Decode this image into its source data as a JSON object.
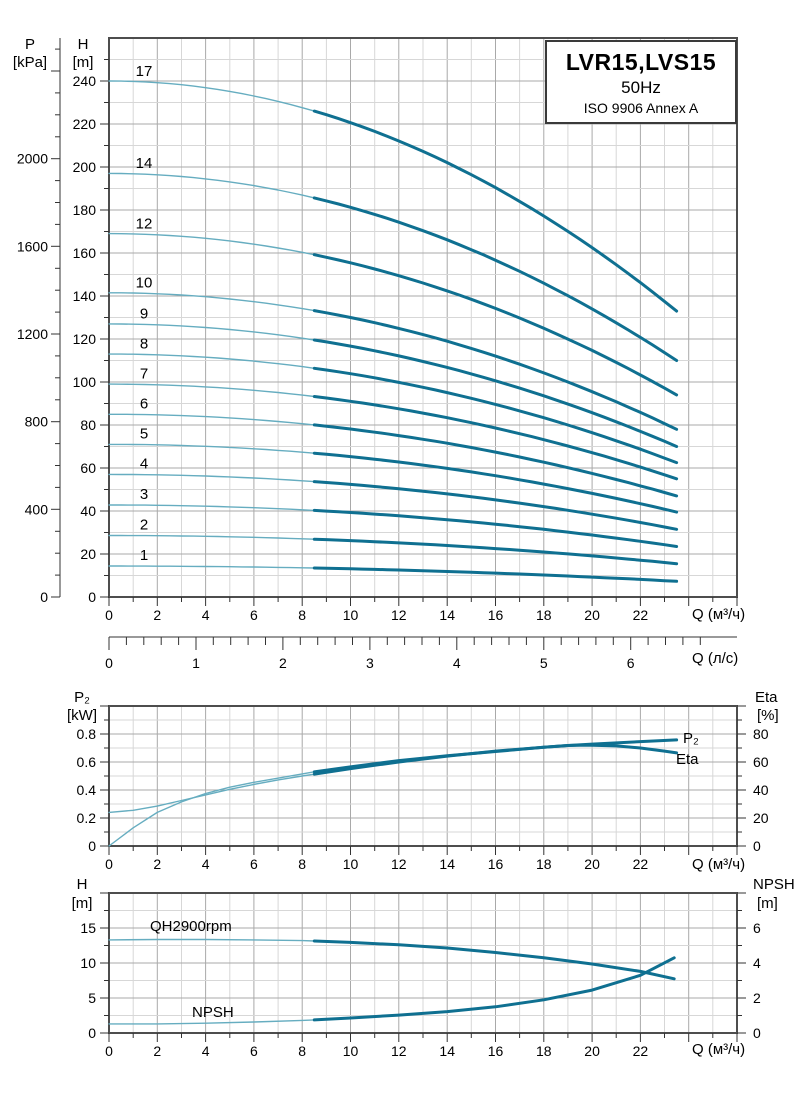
{
  "title_box": {
    "model": "LVR15,LVS15",
    "frequency": "50Hz",
    "standard": "ISO 9906 Annex A"
  },
  "labels": {
    "main": {
      "p": "P",
      "p_unit": "[kPa]",
      "h": "H",
      "h_unit": "[m]",
      "x": "Q (м³/ч)",
      "x2": "Q (л/с)"
    },
    "power": {
      "left": "P₂",
      "left_unit": "[kW]",
      "right": "Eta",
      "right_unit": "[%]",
      "x": "Q (м³/ч)",
      "p2_curve": "P₂",
      "eta_curve": "Eta"
    },
    "npsh": {
      "left": "H",
      "left_unit": "[m]",
      "right": "NPSH",
      "right_unit": "[m]",
      "x": "Q (м³/ч)",
      "qh_curve": "QH2900rpm",
      "npsh_curve": "NPSH"
    }
  },
  "colors": {
    "curve_thick": "#0f7091",
    "curve_thin": "#66adc0",
    "grid_minor": "#d7d7d7",
    "grid_major": "#a9a9a9",
    "border": "#4d4d4d",
    "tick": "#333333",
    "text": "#000000"
  },
  "chart_data": [
    {
      "id": "qh_main",
      "type": "line",
      "title": "LVR15,LVS15 50Hz ISO 9906 Annex A",
      "x_label": "Q (м³/ч)",
      "x2_label": "Q (л/с)",
      "y_left1_label": "P [kPa]",
      "y_left2_label": "H [m]",
      "x_range": [
        0,
        26
      ],
      "h_range": [
        0,
        260
      ],
      "kpa_per_m": 9.81,
      "x_tick_labels": [
        0,
        2,
        4,
        6,
        8,
        10,
        12,
        14,
        16,
        18,
        20,
        22
      ],
      "x2_tick_labels": [
        0,
        1,
        2,
        3,
        4,
        5,
        6
      ],
      "h_tick_labels": [
        0,
        20,
        40,
        60,
        80,
        100,
        120,
        140,
        160,
        180,
        200,
        220,
        240
      ],
      "kpa_tick_labels": [
        0,
        400,
        800,
        1200,
        1600,
        2000
      ],
      "q_split": 8.5,
      "q_end": 23.5,
      "curves": [
        {
          "label": "17",
          "h0": 240,
          "h_end": 133
        },
        {
          "label": "14",
          "h0": 197,
          "h_end": 110
        },
        {
          "label": "12",
          "h0": 169,
          "h_end": 94
        },
        {
          "label": "10",
          "h0": 141.5,
          "h_end": 78
        },
        {
          "label": "9",
          "h0": 127,
          "h_end": 70
        },
        {
          "label": "8",
          "h0": 113,
          "h_end": 62.5
        },
        {
          "label": "7",
          "h0": 99,
          "h_end": 55
        },
        {
          "label": "6",
          "h0": 85,
          "h_end": 47
        },
        {
          "label": "5",
          "h0": 71,
          "h_end": 39.5
        },
        {
          "label": "4",
          "h0": 57,
          "h_end": 31.5
        },
        {
          "label": "3",
          "h0": 42.8,
          "h_end": 23.5
        },
        {
          "label": "2",
          "h0": 28.6,
          "h_end": 15.5
        },
        {
          "label": "1",
          "h0": 14.4,
          "h_end": 7.3
        }
      ]
    },
    {
      "id": "power_eta",
      "type": "line",
      "x_label": "Q (м³/ч)",
      "y_left_label": "P₂ [kW]",
      "y_right_label": "Eta [%]",
      "x_range": [
        0,
        26
      ],
      "kw_range": [
        0,
        1.0
      ],
      "eta_range": [
        0,
        100
      ],
      "x_tick_labels": [
        0,
        2,
        4,
        6,
        8,
        10,
        12,
        14,
        16,
        18,
        20,
        22
      ],
      "kw_tick_labels": [
        0,
        0.2,
        0.4,
        0.6,
        0.8
      ],
      "eta_tick_labels": [
        0,
        20,
        40,
        60,
        80
      ],
      "q_split": 8.5,
      "series": [
        {
          "name": "P₂",
          "unit": "kW",
          "axis": "left",
          "points": [
            [
              0,
              0.24
            ],
            [
              1,
              0.255
            ],
            [
              2,
              0.285
            ],
            [
              3,
              0.325
            ],
            [
              4,
              0.365
            ],
            [
              5,
              0.405
            ],
            [
              6,
              0.44
            ],
            [
              7,
              0.472
            ],
            [
              8,
              0.5
            ],
            [
              8.5,
              0.513
            ],
            [
              10,
              0.553
            ],
            [
              12,
              0.6
            ],
            [
              14,
              0.642
            ],
            [
              16,
              0.678
            ],
            [
              18,
              0.706
            ],
            [
              19,
              0.718
            ],
            [
              20,
              0.728
            ],
            [
              22,
              0.746
            ],
            [
              23.5,
              0.758
            ]
          ]
        },
        {
          "name": "Eta",
          "unit": "%",
          "axis": "right",
          "points": [
            [
              0,
              0
            ],
            [
              1,
              13
            ],
            [
              2,
              24
            ],
            [
              3,
              31.5
            ],
            [
              4,
              37.5
            ],
            [
              5,
              42
            ],
            [
              6,
              45.5
            ],
            [
              8,
              51.5
            ],
            [
              8.5,
              53
            ],
            [
              10,
              56.5
            ],
            [
              12,
              61
            ],
            [
              14,
              64.5
            ],
            [
              16,
              67.5
            ],
            [
              18,
              70.5
            ],
            [
              19,
              71.8
            ],
            [
              19.5,
              72
            ],
            [
              20,
              72
            ],
            [
              21,
              71.5
            ],
            [
              22,
              70
            ],
            [
              23,
              67.8
            ],
            [
              23.5,
              66.5
            ]
          ]
        }
      ]
    },
    {
      "id": "qh_npsh",
      "type": "line",
      "x_label": "Q (м³/ч)",
      "y_left_label": "H [m]",
      "y_right_label": "NPSH [m]",
      "x_range": [
        0,
        26
      ],
      "h_range": [
        0,
        20
      ],
      "npsh_range": [
        0,
        8
      ],
      "x_tick_labels": [
        0,
        2,
        4,
        6,
        8,
        10,
        12,
        14,
        16,
        18,
        20,
        22
      ],
      "h_tick_labels": [
        0,
        5,
        10,
        15
      ],
      "npsh_tick_labels": [
        0,
        2,
        4,
        6
      ],
      "q_split": 8.5,
      "series": [
        {
          "name": "QH2900rpm",
          "unit": "m",
          "axis": "left",
          "points": [
            [
              0,
              13.3
            ],
            [
              2,
              13.35
            ],
            [
              4,
              13.35
            ],
            [
              6,
              13.3
            ],
            [
              8,
              13.2
            ],
            [
              8.5,
              13.15
            ],
            [
              10,
              12.95
            ],
            [
              12,
              12.6
            ],
            [
              14,
              12.15
            ],
            [
              16,
              11.5
            ],
            [
              18,
              10.75
            ],
            [
              20,
              9.85
            ],
            [
              22,
              8.8
            ],
            [
              23.4,
              7.75
            ]
          ]
        },
        {
          "name": "NPSH",
          "unit": "m",
          "axis": "right",
          "points": [
            [
              0,
              0.52
            ],
            [
              2,
              0.52
            ],
            [
              4,
              0.56
            ],
            [
              6,
              0.63
            ],
            [
              8,
              0.72
            ],
            [
              8.5,
              0.75
            ],
            [
              10,
              0.86
            ],
            [
              12,
              1.02
            ],
            [
              14,
              1.22
            ],
            [
              16,
              1.5
            ],
            [
              18,
              1.9
            ],
            [
              20,
              2.45
            ],
            [
              22,
              3.3
            ],
            [
              23.4,
              4.3
            ]
          ]
        }
      ]
    }
  ]
}
